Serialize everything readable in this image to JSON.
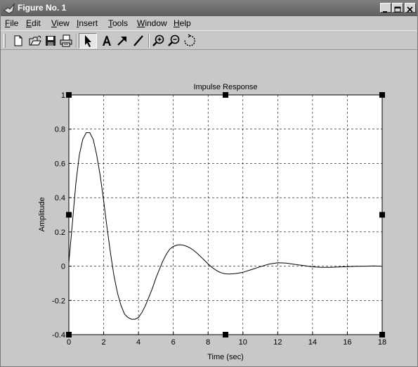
{
  "window": {
    "title": "Figure No. 1"
  },
  "menu": [
    {
      "label": "File",
      "u": "F",
      "rest": "ile"
    },
    {
      "label": "Edit",
      "u": "E",
      "rest": "dit"
    },
    {
      "label": "View",
      "u": "V",
      "rest": "iew"
    },
    {
      "label": "Insert",
      "u": "I",
      "rest": "nsert"
    },
    {
      "label": "Tools",
      "u": "T",
      "rest": "ools"
    },
    {
      "label": "Window",
      "u": "W",
      "rest": "indow"
    },
    {
      "label": "Help",
      "u": "H",
      "rest": "elp"
    }
  ],
  "toolbar": {
    "tools": [
      "new-figure",
      "open-file",
      "save",
      "print",
      "edit-plot-arrow",
      "insert-text",
      "insert-arrow",
      "insert-line",
      "zoom-in",
      "zoom-out",
      "rotate-3d"
    ],
    "selected": "edit-plot-arrow"
  },
  "chart_data": {
    "type": "line",
    "title": "Impulse Response",
    "xlabel": "Time (sec)",
    "ylabel": "Amplitude",
    "xlim": [
      0,
      18
    ],
    "ylim": [
      -0.4,
      1
    ],
    "xticks": [
      "0",
      "2",
      "4",
      "6",
      "8",
      "10",
      "12",
      "14",
      "16",
      "18"
    ],
    "yticks": [
      "-0.4",
      "-0.2",
      "0",
      "0.2",
      "0.4",
      "0.6",
      "0.8",
      "1"
    ],
    "grid": true,
    "series": [
      {
        "color": "#000000",
        "x": [
          0,
          0.2,
          0.4,
          0.6,
          0.8,
          1.0,
          1.2,
          1.4,
          1.6,
          1.8,
          2.0,
          2.2,
          2.4,
          2.6,
          2.8,
          3.0,
          3.2,
          3.4,
          3.6,
          3.8,
          4.0,
          4.2,
          4.4,
          4.6,
          4.8,
          5.0,
          5.2,
          5.4,
          5.6,
          5.8,
          6.0,
          6.2,
          6.4,
          6.6,
          6.8,
          7.0,
          7.2,
          7.4,
          7.6,
          7.8,
          8.0,
          8.2,
          8.4,
          8.6,
          8.8,
          9.0,
          9.2,
          9.4,
          9.6,
          9.8,
          10.0,
          10.5,
          11.0,
          11.5,
          12.0,
          12.5,
          13.0,
          13.5,
          14.0,
          14.5,
          15.0,
          15.5,
          16.0,
          16.5,
          17.0,
          17.5,
          18.0
        ],
        "y": [
          0.02,
          0.25,
          0.48,
          0.65,
          0.74,
          0.78,
          0.78,
          0.74,
          0.65,
          0.53,
          0.38,
          0.22,
          0.07,
          -0.06,
          -0.16,
          -0.23,
          -0.28,
          -0.3,
          -0.31,
          -0.31,
          -0.3,
          -0.27,
          -0.23,
          -0.18,
          -0.13,
          -0.07,
          -0.02,
          0.03,
          0.07,
          0.1,
          0.115,
          0.123,
          0.125,
          0.122,
          0.115,
          0.104,
          0.09,
          0.072,
          0.053,
          0.033,
          0.013,
          -0.005,
          -0.02,
          -0.032,
          -0.04,
          -0.045,
          -0.046,
          -0.045,
          -0.043,
          -0.04,
          -0.036,
          -0.02,
          -0.003,
          0.012,
          0.02,
          0.018,
          0.01,
          0.003,
          -0.004,
          -0.007,
          -0.007,
          -0.005,
          -0.003,
          -0.001,
          0.0,
          0.001,
          0.0
        ]
      }
    ]
  }
}
